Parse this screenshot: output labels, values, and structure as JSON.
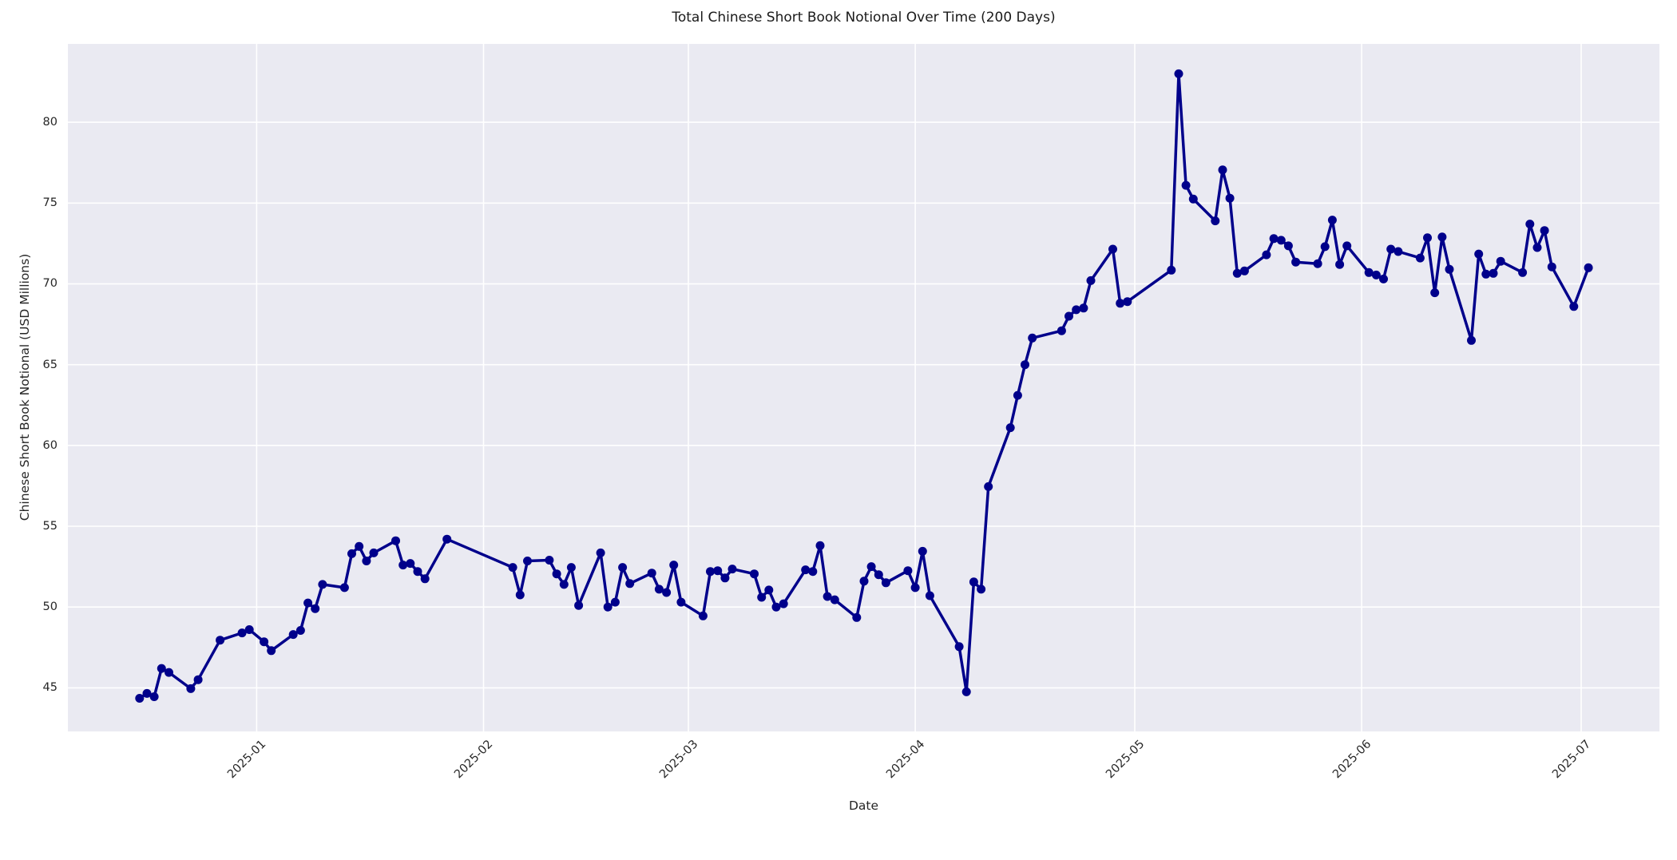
{
  "chart_data": {
    "type": "line",
    "title": "Total Chinese Short Book Notional Over Time (200 Days)",
    "xlabel": "Date",
    "ylabel": "Chinese Short Book Notional (USD Millions)",
    "series_name": "total-chinese-short-book-notional",
    "grid": true,
    "legend": false,
    "x_epoch": "2025-01-01",
    "xlim_days": [
      -25.8,
      191.7
    ],
    "ylim": [
      42.3,
      84.85
    ],
    "yticks": [
      45,
      50,
      55,
      60,
      65,
      70,
      75,
      80
    ],
    "xticks": [
      {
        "label": "2025-01",
        "day": 0
      },
      {
        "label": "2025-02",
        "day": 31
      },
      {
        "label": "2025-03",
        "day": 59
      },
      {
        "label": "2025-04",
        "day": 90
      },
      {
        "label": "2025-05",
        "day": 120
      },
      {
        "label": "2025-06",
        "day": 151
      },
      {
        "label": "2025-07",
        "day": 181
      }
    ],
    "colors": {
      "line": "#00008B",
      "marker": "#00008B",
      "plot_bg": "#EAEAF2",
      "grid": "#FFFFFF",
      "text": "#262626",
      "fig_bg": "#FFFFFF"
    },
    "points": [
      [
        "2024-12-16",
        44.35
      ],
      [
        "2024-12-17",
        44.65
      ],
      [
        "2024-12-18",
        44.45
      ],
      [
        "2024-12-19",
        46.2
      ],
      [
        "2024-12-20",
        45.95
      ],
      [
        "2024-12-23",
        44.95
      ],
      [
        "2024-12-24",
        45.5
      ],
      [
        "2024-12-27",
        47.95
      ],
      [
        "2024-12-30",
        48.4
      ],
      [
        "2024-12-31",
        48.6
      ],
      [
        "2025-01-02",
        47.85
      ],
      [
        "2025-01-03",
        47.3
      ],
      [
        "2025-01-06",
        48.3
      ],
      [
        "2025-01-07",
        48.55
      ],
      [
        "2025-01-08",
        50.25
      ],
      [
        "2025-01-09",
        49.9
      ],
      [
        "2025-01-10",
        51.4
      ],
      [
        "2025-01-13",
        51.2
      ],
      [
        "2025-01-14",
        53.3
      ],
      [
        "2025-01-15",
        53.75
      ],
      [
        "2025-01-16",
        52.85
      ],
      [
        "2025-01-17",
        53.35
      ],
      [
        "2025-01-20",
        54.1
      ],
      [
        "2025-01-21",
        52.6
      ],
      [
        "2025-01-22",
        52.7
      ],
      [
        "2025-01-23",
        52.2
      ],
      [
        "2025-01-24",
        51.75
      ],
      [
        "2025-01-27",
        54.2
      ],
      [
        "2025-02-05",
        52.45
      ],
      [
        "2025-02-06",
        50.75
      ],
      [
        "2025-02-07",
        52.85
      ],
      [
        "2025-02-10",
        52.9
      ],
      [
        "2025-02-11",
        52.05
      ],
      [
        "2025-02-12",
        51.4
      ],
      [
        "2025-02-13",
        52.45
      ],
      [
        "2025-02-14",
        50.1
      ],
      [
        "2025-02-17",
        53.35
      ],
      [
        "2025-02-18",
        50.0
      ],
      [
        "2025-02-19",
        50.3
      ],
      [
        "2025-02-20",
        52.45
      ],
      [
        "2025-02-21",
        51.45
      ],
      [
        "2025-02-24",
        52.1
      ],
      [
        "2025-02-25",
        51.1
      ],
      [
        "2025-02-26",
        50.9
      ],
      [
        "2025-02-27",
        52.6
      ],
      [
        "2025-02-28",
        50.3
      ],
      [
        "2025-03-03",
        49.45
      ],
      [
        "2025-03-04",
        52.2
      ],
      [
        "2025-03-05",
        52.25
      ],
      [
        "2025-03-06",
        51.8
      ],
      [
        "2025-03-07",
        52.35
      ],
      [
        "2025-03-10",
        52.05
      ],
      [
        "2025-03-11",
        50.6
      ],
      [
        "2025-03-12",
        51.05
      ],
      [
        "2025-03-13",
        50.0
      ],
      [
        "2025-03-14",
        50.2
      ],
      [
        "2025-03-17",
        52.3
      ],
      [
        "2025-03-18",
        52.2
      ],
      [
        "2025-03-19",
        53.8
      ],
      [
        "2025-03-20",
        50.65
      ],
      [
        "2025-03-21",
        50.45
      ],
      [
        "2025-03-24",
        49.35
      ],
      [
        "2025-03-25",
        51.6
      ],
      [
        "2025-03-26",
        52.5
      ],
      [
        "2025-03-27",
        52.0
      ],
      [
        "2025-03-28",
        51.5
      ],
      [
        "2025-03-31",
        52.25
      ],
      [
        "2025-04-01",
        51.2
      ],
      [
        "2025-04-02",
        53.45
      ],
      [
        "2025-04-03",
        50.7
      ],
      [
        "2025-04-07",
        47.55
      ],
      [
        "2025-04-08",
        44.75
      ],
      [
        "2025-04-09",
        51.55
      ],
      [
        "2025-04-10",
        51.1
      ],
      [
        "2025-04-11",
        57.45
      ],
      [
        "2025-04-14",
        61.1
      ],
      [
        "2025-04-15",
        63.1
      ],
      [
        "2025-04-16",
        65.0
      ],
      [
        "2025-04-17",
        66.65
      ],
      [
        "2025-04-21",
        67.1
      ],
      [
        "2025-04-22",
        68.0
      ],
      [
        "2025-04-23",
        68.4
      ],
      [
        "2025-04-24",
        68.5
      ],
      [
        "2025-04-25",
        70.2
      ],
      [
        "2025-04-28",
        72.15
      ],
      [
        "2025-04-29",
        68.8
      ],
      [
        "2025-04-30",
        68.9
      ],
      [
        "2025-05-06",
        70.85
      ],
      [
        "2025-05-07",
        83.0
      ],
      [
        "2025-05-08",
        76.1
      ],
      [
        "2025-05-09",
        75.25
      ],
      [
        "2025-05-12",
        73.9
      ],
      [
        "2025-05-13",
        77.05
      ],
      [
        "2025-05-14",
        75.3
      ],
      [
        "2025-05-15",
        70.65
      ],
      [
        "2025-05-16",
        70.8
      ],
      [
        "2025-05-19",
        71.8
      ],
      [
        "2025-05-20",
        72.8
      ],
      [
        "2025-05-21",
        72.7
      ],
      [
        "2025-05-22",
        72.35
      ],
      [
        "2025-05-23",
        71.35
      ],
      [
        "2025-05-26",
        71.25
      ],
      [
        "2025-05-27",
        72.3
      ],
      [
        "2025-05-28",
        73.95
      ],
      [
        "2025-05-29",
        71.2
      ],
      [
        "2025-05-30",
        72.35
      ],
      [
        "2025-06-02",
        70.7
      ],
      [
        "2025-06-03",
        70.55
      ],
      [
        "2025-06-04",
        70.3
      ],
      [
        "2025-06-05",
        72.15
      ],
      [
        "2025-06-06",
        72.0
      ],
      [
        "2025-06-09",
        71.6
      ],
      [
        "2025-06-10",
        72.85
      ],
      [
        "2025-06-11",
        69.45
      ],
      [
        "2025-06-12",
        72.9
      ],
      [
        "2025-06-13",
        70.9
      ],
      [
        "2025-06-16",
        66.5
      ],
      [
        "2025-06-17",
        71.85
      ],
      [
        "2025-06-18",
        70.6
      ],
      [
        "2025-06-19",
        70.65
      ],
      [
        "2025-06-20",
        71.4
      ],
      [
        "2025-06-23",
        70.7
      ],
      [
        "2025-06-24",
        73.7
      ],
      [
        "2025-06-25",
        72.25
      ],
      [
        "2025-06-26",
        73.3
      ],
      [
        "2025-06-27",
        71.05
      ],
      [
        "2025-06-30",
        68.6
      ],
      [
        "2025-07-02",
        71.0
      ]
    ]
  }
}
